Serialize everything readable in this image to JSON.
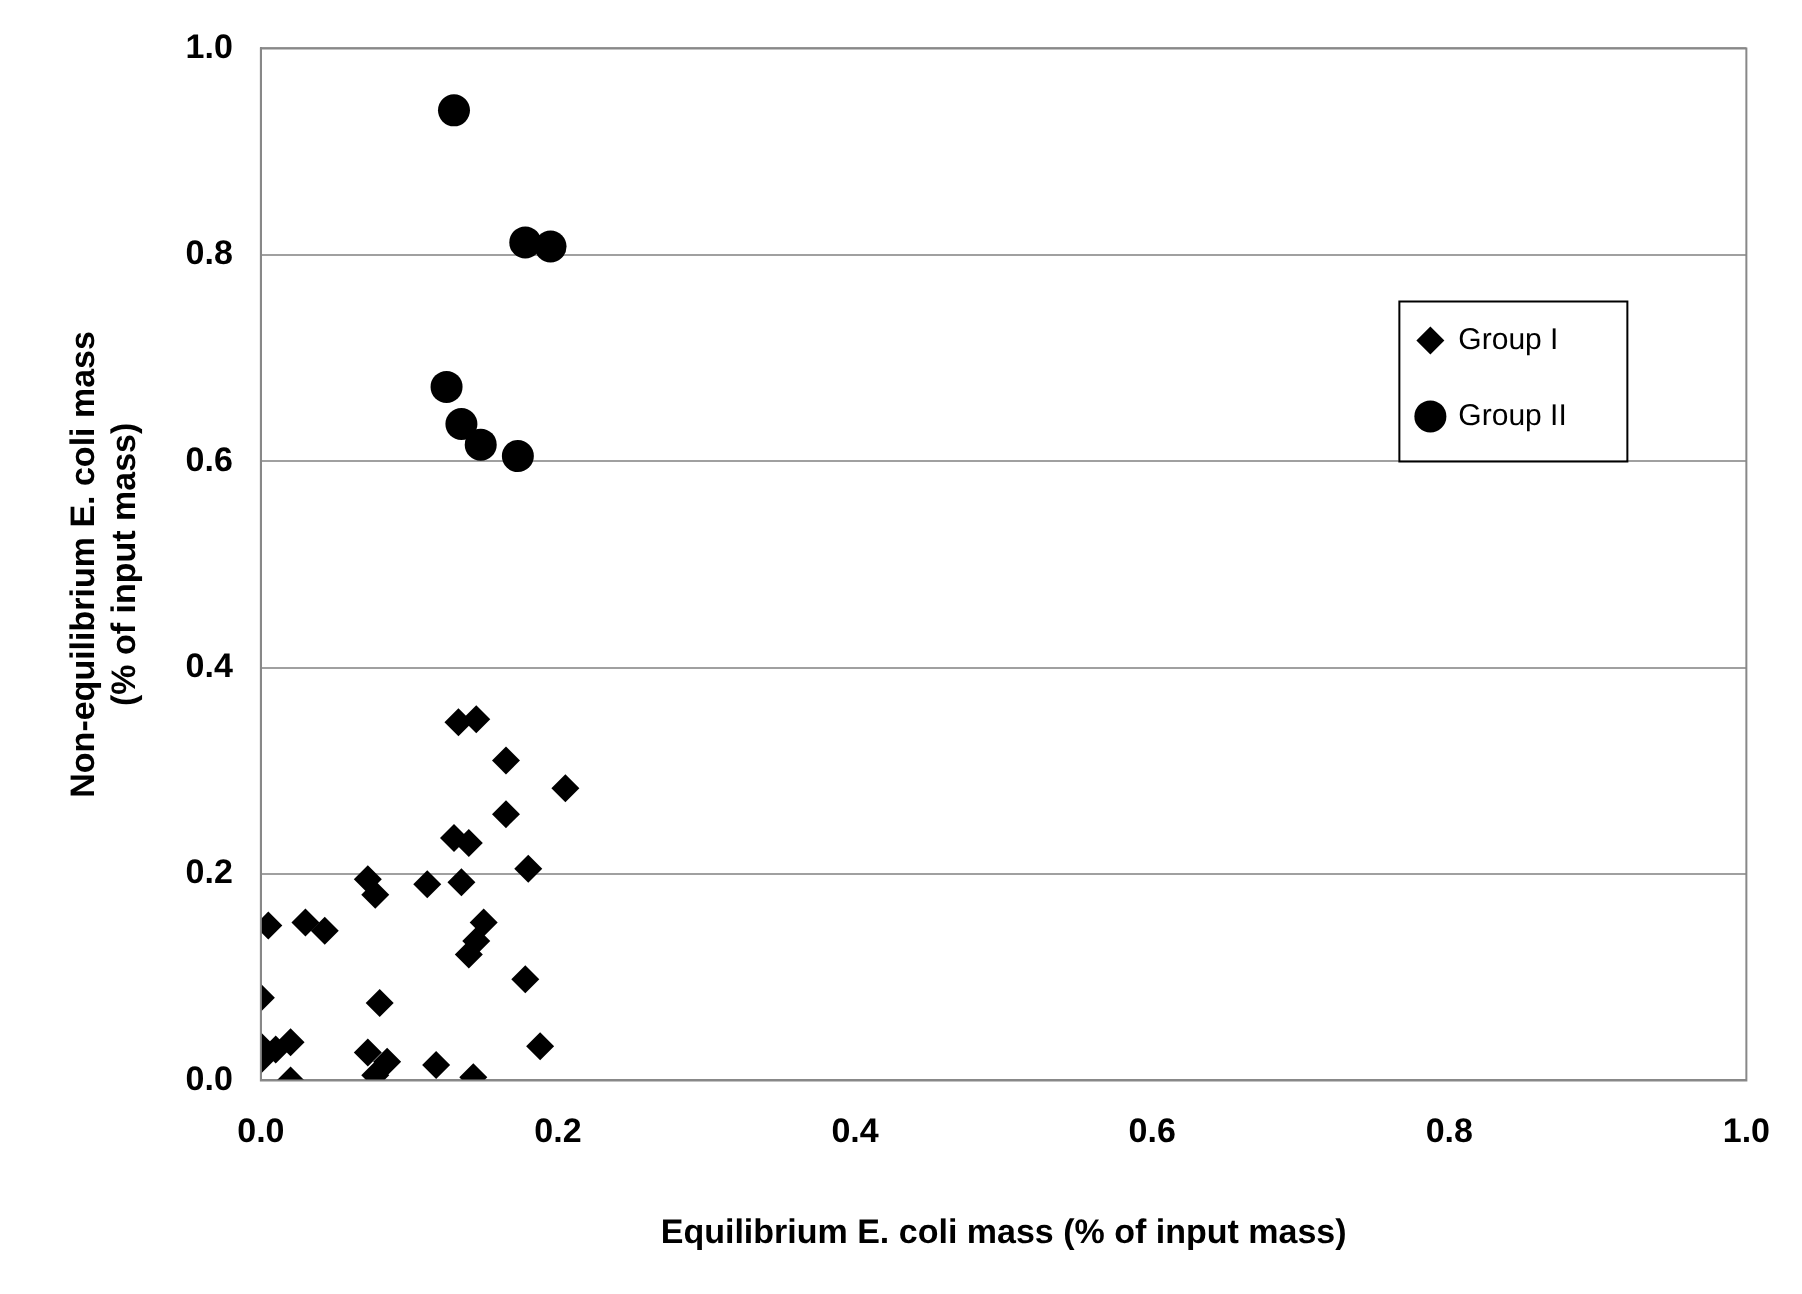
{
  "chart_data": {
    "type": "scatter",
    "xlabel": "Equilibrium E. coli mass (% of input mass)",
    "ylabel": "Non-equilibrium E. coli mass\n(% of input mass)",
    "xlim": [
      0,
      1
    ],
    "ylim": [
      0,
      1
    ],
    "xticks": [
      {
        "value": 0,
        "label": "0.0"
      },
      {
        "value": 0.2,
        "label": "0.2"
      },
      {
        "value": 0.4,
        "label": "0.4"
      },
      {
        "value": 0.6,
        "label": "0.6"
      },
      {
        "value": 0.8,
        "label": "0.8"
      },
      {
        "value": 1,
        "label": "1.0"
      }
    ],
    "yticks": [
      {
        "value": 0,
        "label": "0.0"
      },
      {
        "value": 0.2,
        "label": "0.2"
      },
      {
        "value": 0.4,
        "label": "0.4"
      },
      {
        "value": 0.6,
        "label": "0.6"
      },
      {
        "value": 0.8,
        "label": "0.8"
      },
      {
        "value": 1,
        "label": "1.0"
      }
    ],
    "grid": "y",
    "legend": "top right",
    "series": [
      {
        "name": "Group I",
        "color": "#000000",
        "marker": "diamond",
        "x": [
          0.005,
          0.03,
          0.043,
          0.0,
          0.0,
          0.0,
          0.01,
          0.02,
          0.02,
          0.072,
          0.077,
          0.08,
          0.072,
          0.077,
          0.085,
          0.112,
          0.118,
          0.13,
          0.133,
          0.145,
          0.14,
          0.135,
          0.14,
          0.145,
          0.15,
          0.143,
          0.165,
          0.165,
          0.18,
          0.178,
          0.188,
          0.205
        ],
        "values": [
          0.15,
          0.153,
          0.145,
          0.08,
          0.02,
          0.033,
          0.03,
          0.037,
          0.0,
          0.195,
          0.18,
          0.075,
          0.027,
          0.005,
          0.018,
          0.19,
          0.015,
          0.235,
          0.347,
          0.35,
          0.23,
          0.192,
          0.122,
          0.135,
          0.153,
          0.003,
          0.31,
          0.258,
          0.205,
          0.098,
          0.033,
          0.283
        ]
      },
      {
        "name": "Group II",
        "color": "#000000",
        "marker": "circle",
        "x": [
          0.13,
          0.178,
          0.195,
          0.125,
          0.135,
          0.148,
          0.173
        ],
        "values": [
          0.94,
          0.812,
          0.808,
          0.672,
          0.636,
          0.616,
          0.605
        ]
      }
    ]
  }
}
